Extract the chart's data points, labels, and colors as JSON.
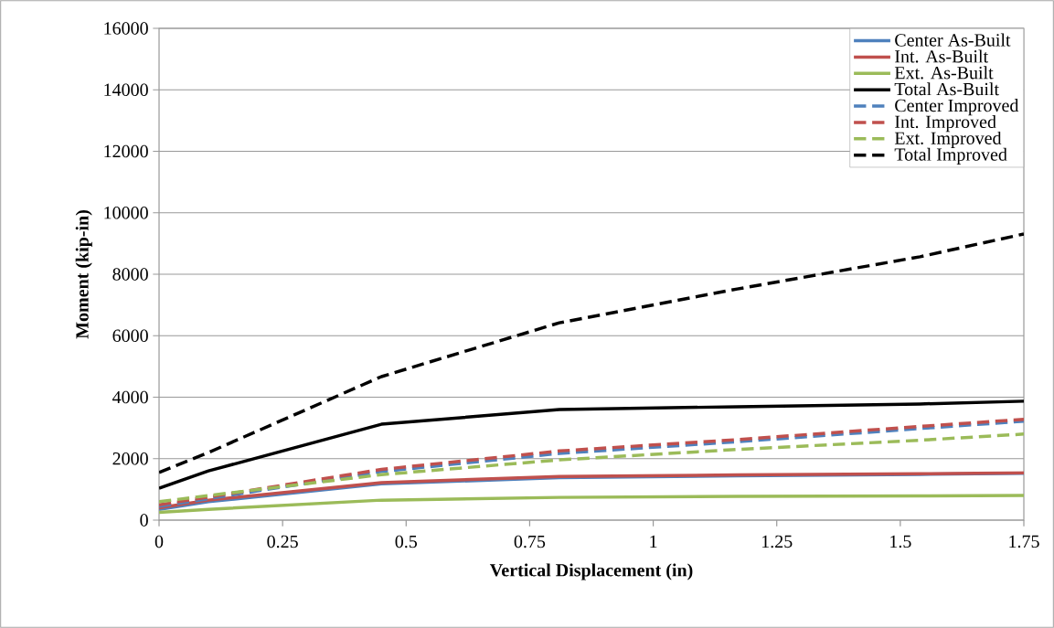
{
  "chart_data": {
    "type": "line",
    "xlabel": "Vertical Displacement (in)",
    "ylabel": "Moment (kip-in)",
    "xlim": [
      0,
      1.75
    ],
    "ylim": [
      0,
      16000
    ],
    "xticks": [
      0,
      0.25,
      0.5,
      0.75,
      1,
      1.25,
      1.5,
      1.75
    ],
    "yticks": [
      0,
      2000,
      4000,
      6000,
      8000,
      10000,
      12000,
      14000,
      16000
    ],
    "grid": "y",
    "legend": "top right",
    "marker": "none",
    "x": [
      0,
      0.1,
      0.45,
      0.81,
      1.17,
      1.54,
      1.75
    ],
    "series": [
      {
        "name": "Center As-Built",
        "color": "#4f81bd",
        "line_style": "solid",
        "values": [
          350,
          600,
          1180,
          1380,
          1440,
          1490,
          1520
        ]
      },
      {
        "name": "Int. As-Built",
        "color": "#c0504d",
        "line_style": "solid",
        "values": [
          400,
          650,
          1220,
          1420,
          1470,
          1510,
          1540
        ]
      },
      {
        "name": "Ext. As-Built",
        "color": "#9bbb59",
        "line_style": "solid",
        "values": [
          250,
          350,
          650,
          740,
          770,
          790,
          800
        ]
      },
      {
        "name": "Total As-Built",
        "color": "#000000",
        "line_style": "solid",
        "values": [
          1040,
          1600,
          3120,
          3600,
          3690,
          3780,
          3870
        ]
      },
      {
        "name": "Center Improved",
        "color": "#4f81bd",
        "line_style": "dashed",
        "values": [
          450,
          700,
          1580,
          2170,
          2550,
          2980,
          3220
        ]
      },
      {
        "name": "Int. Improved",
        "color": "#c0504d",
        "line_style": "dashed",
        "values": [
          500,
          750,
          1650,
          2250,
          2620,
          3050,
          3280
        ]
      },
      {
        "name": "Ext. Improved",
        "color": "#9bbb59",
        "line_style": "dashed",
        "values": [
          600,
          800,
          1480,
          1960,
          2300,
          2600,
          2800
        ]
      },
      {
        "name": "Total Improved",
        "color": "#000000",
        "line_style": "dashed",
        "values": [
          1550,
          2200,
          4670,
          6420,
          7520,
          8570,
          9310
        ]
      }
    ]
  }
}
